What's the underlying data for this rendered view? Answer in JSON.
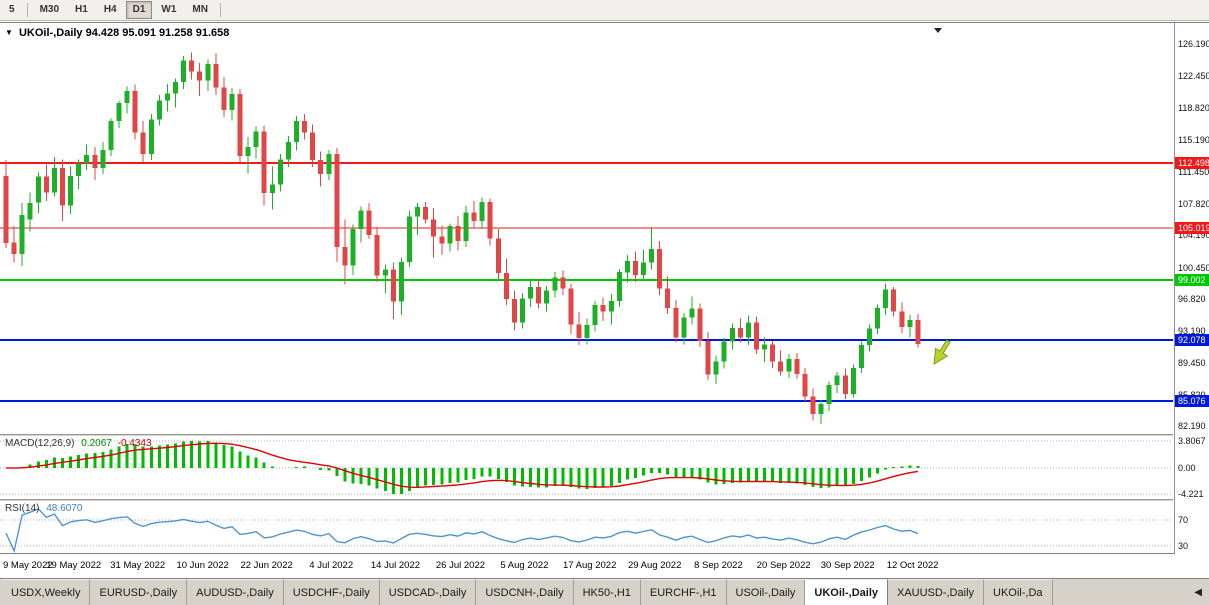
{
  "icons": {
    "chart_menu": "▼",
    "tab_scroll_left": "◀"
  },
  "toolbar": {
    "timeframes": [
      {
        "label": "5",
        "active": false
      },
      {
        "label": "M30",
        "active": false,
        "sep_before": true
      },
      {
        "label": "H1",
        "active": false
      },
      {
        "label": "H4",
        "active": false
      },
      {
        "label": "D1",
        "active": true
      },
      {
        "label": "W1",
        "active": false
      },
      {
        "label": "MN",
        "active": false,
        "sep_after": true
      }
    ]
  },
  "chart_data": {
    "type": "candlestick",
    "title": "UKOil-,Daily  94.428 95.091 91.258 91.658",
    "symbol": "UKOil-",
    "timeframe": "Daily",
    "ohlc_current": {
      "open": 94.428,
      "high": 95.091,
      "low": 91.258,
      "close": 91.658
    },
    "ylim": [
      81.27,
      128.49
    ],
    "y_ticks": [
      126.19,
      122.45,
      118.82,
      115.19,
      111.45,
      107.82,
      104.19,
      100.45,
      96.82,
      93.19,
      89.45,
      85.82,
      82.19
    ],
    "colors": {
      "bull": "#1cb026",
      "bear": "#e04646",
      "macd_hist": "#00bb00",
      "macd_signal": "#e00000",
      "rsi_line": "#4f94cd",
      "level_line_red": "#f01818",
      "level_line_green": "#00c800",
      "level_line_blue": "#0018d8"
    },
    "hlines": [
      {
        "price": 112.498,
        "color": "#f01818",
        "width": 2
      },
      {
        "price": 105.019,
        "color": "#f01818",
        "width": 1
      },
      {
        "price": 99.002,
        "color": "#00c800",
        "width": 2
      },
      {
        "price": 92.078,
        "color": "#0018d8",
        "width": 2
      },
      {
        "price": 85.076,
        "color": "#0018d8",
        "width": 2
      }
    ],
    "annotation": {
      "type": "arrow-down",
      "color": "#b8d431",
      "stroke": "#7e9a10"
    },
    "x_ticks": [
      {
        "i": 0,
        "label": "9 May 2022"
      },
      {
        "i": 8,
        "label": "19 May 2022"
      },
      {
        "i": 16,
        "label": "31 May 2022"
      },
      {
        "i": 24,
        "label": "10 Jun 2022"
      },
      {
        "i": 32,
        "label": "22 Jun 2022"
      },
      {
        "i": 40,
        "label": "4 Jul 2022"
      },
      {
        "i": 48,
        "label": "14 Jul 2022"
      },
      {
        "i": 56,
        "label": "26 Jul 2022"
      },
      {
        "i": 64,
        "label": "5 Aug 2022"
      },
      {
        "i": 72,
        "label": "17 Aug 2022"
      },
      {
        "i": 80,
        "label": "29 Aug 2022"
      },
      {
        "i": 88,
        "label": "8 Sep 2022"
      },
      {
        "i": 96,
        "label": "20 Sep 2022"
      },
      {
        "i": 104,
        "label": "30 Sep 2022"
      },
      {
        "i": 112,
        "label": "12 Oct 2022"
      }
    ],
    "candles": [
      [
        111.0,
        112.8,
        102.7,
        103.3
      ],
      [
        103.3,
        105.2,
        101.0,
        102.0
      ],
      [
        102.0,
        107.9,
        100.6,
        106.5
      ],
      [
        106.0,
        109.1,
        104.6,
        107.9
      ],
      [
        107.9,
        111.4,
        106.7,
        110.9
      ],
      [
        110.9,
        112.3,
        108.1,
        109.1
      ],
      [
        109.1,
        113.2,
        108.6,
        111.9
      ],
      [
        111.9,
        112.9,
        105.8,
        107.6
      ],
      [
        107.6,
        112.1,
        106.6,
        111.0
      ],
      [
        111.0,
        112.9,
        109.5,
        112.4
      ],
      [
        112.4,
        114.6,
        111.6,
        113.4
      ],
      [
        113.4,
        114.3,
        110.5,
        111.9
      ],
      [
        111.9,
        114.9,
        111.2,
        114.0
      ],
      [
        114.0,
        117.6,
        113.3,
        117.3
      ],
      [
        117.3,
        119.6,
        116.5,
        119.4
      ],
      [
        119.4,
        121.3,
        118.2,
        120.8
      ],
      [
        120.8,
        121.5,
        115.2,
        116.0
      ],
      [
        116.0,
        117.3,
        112.6,
        113.5
      ],
      [
        113.5,
        118.1,
        112.8,
        117.5
      ],
      [
        117.5,
        120.3,
        116.8,
        119.7
      ],
      [
        119.7,
        121.6,
        118.4,
        120.5
      ],
      [
        120.5,
        122.2,
        118.9,
        121.8
      ],
      [
        121.8,
        124.8,
        121.0,
        124.3
      ],
      [
        124.3,
        125.2,
        122.1,
        123.0
      ],
      [
        123.0,
        124.0,
        120.2,
        122.0
      ],
      [
        122.0,
        124.4,
        120.8,
        123.9
      ],
      [
        123.9,
        125.1,
        120.3,
        121.2
      ],
      [
        121.2,
        122.4,
        117.8,
        118.6
      ],
      [
        118.6,
        121.1,
        117.4,
        120.4
      ],
      [
        120.4,
        121.0,
        112.6,
        113.3
      ],
      [
        113.3,
        115.5,
        111.3,
        114.3
      ],
      [
        114.3,
        116.7,
        113.0,
        116.1
      ],
      [
        116.1,
        116.8,
        107.6,
        109.0
      ],
      [
        109.0,
        112.1,
        107.1,
        110.0
      ],
      [
        110.0,
        113.5,
        109.2,
        112.9
      ],
      [
        112.9,
        115.6,
        112.0,
        114.9
      ],
      [
        114.9,
        117.9,
        113.9,
        117.3
      ],
      [
        117.3,
        118.1,
        115.2,
        116.0
      ],
      [
        116.0,
        116.9,
        112.0,
        112.8
      ],
      [
        112.8,
        113.8,
        109.8,
        111.2
      ],
      [
        111.2,
        114.0,
        110.5,
        113.5
      ],
      [
        113.5,
        114.2,
        101.1,
        102.8
      ],
      [
        102.8,
        106.0,
        98.5,
        100.7
      ],
      [
        100.7,
        105.4,
        99.6,
        104.9
      ],
      [
        104.9,
        107.5,
        103.3,
        107.0
      ],
      [
        107.0,
        107.9,
        103.7,
        104.2
      ],
      [
        104.2,
        105.1,
        98.8,
        99.5
      ],
      [
        99.5,
        100.8,
        97.5,
        100.2
      ],
      [
        100.2,
        101.0,
        94.5,
        96.5
      ],
      [
        96.5,
        101.6,
        95.0,
        101.1
      ],
      [
        101.1,
        107.0,
        100.5,
        106.3
      ],
      [
        106.3,
        107.9,
        104.2,
        107.4
      ],
      [
        107.4,
        108.0,
        105.5,
        106.0
      ],
      [
        106.0,
        107.3,
        101.6,
        104.0
      ],
      [
        104.0,
        105.3,
        101.9,
        103.2
      ],
      [
        103.2,
        105.5,
        102.3,
        105.2
      ],
      [
        105.2,
        106.4,
        102.4,
        103.5
      ],
      [
        103.5,
        107.6,
        102.8,
        106.8
      ],
      [
        106.8,
        108.1,
        105.0,
        105.8
      ],
      [
        105.8,
        108.5,
        104.9,
        108.0
      ],
      [
        108.0,
        108.4,
        103.0,
        103.8
      ],
      [
        103.8,
        104.9,
        99.1,
        99.8
      ],
      [
        99.8,
        101.5,
        96.1,
        96.8
      ],
      [
        96.8,
        97.8,
        93.2,
        94.1
      ],
      [
        94.1,
        97.5,
        93.4,
        96.9
      ],
      [
        96.9,
        98.9,
        95.9,
        98.2
      ],
      [
        98.2,
        99.1,
        95.7,
        96.3
      ],
      [
        96.3,
        98.3,
        95.4,
        97.8
      ],
      [
        97.8,
        99.9,
        97.0,
        99.3
      ],
      [
        99.3,
        100.1,
        97.3,
        98.0
      ],
      [
        98.0,
        98.6,
        92.8,
        93.9
      ],
      [
        93.9,
        95.3,
        91.5,
        92.3
      ],
      [
        92.3,
        94.6,
        91.6,
        93.8
      ],
      [
        93.8,
        96.6,
        93.1,
        96.1
      ],
      [
        96.1,
        97.0,
        94.3,
        95.4
      ],
      [
        95.4,
        97.4,
        93.9,
        96.6
      ],
      [
        96.6,
        100.3,
        95.9,
        99.9
      ],
      [
        99.9,
        101.9,
        98.7,
        101.2
      ],
      [
        101.2,
        102.3,
        98.8,
        99.6
      ],
      [
        99.6,
        102.5,
        98.9,
        101.0
      ],
      [
        101.0,
        105.1,
        100.2,
        102.6
      ],
      [
        102.6,
        103.5,
        97.2,
        98.0
      ],
      [
        98.0,
        99.4,
        95.1,
        95.8
      ],
      [
        95.8,
        96.7,
        91.8,
        92.4
      ],
      [
        92.4,
        95.2,
        91.6,
        94.7
      ],
      [
        94.7,
        97.1,
        93.9,
        95.7
      ],
      [
        95.7,
        96.3,
        91.3,
        92.0
      ],
      [
        92.0,
        93.0,
        87.5,
        88.1
      ],
      [
        88.1,
        90.3,
        87.0,
        89.6
      ],
      [
        89.6,
        92.3,
        88.8,
        91.9
      ],
      [
        91.9,
        94.0,
        91.0,
        93.5
      ],
      [
        93.5,
        94.6,
        91.8,
        92.4
      ],
      [
        92.4,
        94.9,
        91.5,
        94.1
      ],
      [
        94.1,
        94.8,
        90.5,
        91.0
      ],
      [
        91.0,
        92.4,
        89.5,
        91.6
      ],
      [
        91.6,
        92.0,
        88.9,
        89.6
      ],
      [
        89.6,
        90.9,
        88.0,
        88.5
      ],
      [
        88.5,
        90.5,
        87.7,
        89.9
      ],
      [
        89.9,
        90.6,
        87.6,
        88.2
      ],
      [
        88.2,
        88.9,
        85.0,
        85.6
      ],
      [
        85.6,
        86.5,
        82.8,
        83.6
      ],
      [
        83.6,
        85.2,
        82.4,
        84.7
      ],
      [
        84.7,
        87.3,
        83.9,
        86.9
      ],
      [
        86.9,
        88.4,
        86.0,
        88.0
      ],
      [
        88.0,
        88.8,
        85.3,
        85.9
      ],
      [
        85.9,
        89.3,
        85.5,
        88.9
      ],
      [
        88.9,
        91.9,
        88.3,
        91.5
      ],
      [
        91.5,
        93.9,
        90.8,
        93.4
      ],
      [
        93.4,
        96.2,
        92.8,
        95.8
      ],
      [
        95.8,
        98.6,
        95.0,
        97.9
      ],
      [
        97.9,
        98.2,
        94.8,
        95.4
      ],
      [
        95.4,
        96.4,
        92.9,
        93.6
      ],
      [
        93.6,
        95.0,
        92.4,
        94.4
      ],
      [
        94.428,
        95.091,
        91.258,
        91.658
      ]
    ],
    "indicators": [
      {
        "type": "macd",
        "name": "MACD(12,26,9)",
        "params": [
          12,
          26,
          9
        ],
        "main_value": "0.2067",
        "signal_value": "-0.4343",
        "y_ticks": [
          "3.8067",
          "0.00",
          "-4.221"
        ]
      },
      {
        "type": "rsi",
        "name": "RSI(14)",
        "period": 14,
        "value": "48.6070",
        "levels": [
          70,
          30
        ]
      }
    ]
  },
  "tabs": {
    "items": [
      {
        "label": "USDX,Weekly",
        "active": false
      },
      {
        "label": "EURUSD-,Daily",
        "active": false
      },
      {
        "label": "AUDUSD-,Daily",
        "active": false
      },
      {
        "label": "USDCHF-,Daily",
        "active": false
      },
      {
        "label": "USDCAD-,Daily",
        "active": false
      },
      {
        "label": "USDCNH-,Daily",
        "active": false
      },
      {
        "label": "HK50-,H1",
        "active": false
      },
      {
        "label": "EURCHF-,H1",
        "active": false
      },
      {
        "label": "USOil-,Daily",
        "active": false
      },
      {
        "label": "UKOil-,Daily",
        "active": true
      },
      {
        "label": "XAUUSD-,Daily",
        "active": false
      },
      {
        "label": "UKOil-,Da",
        "active": false
      }
    ]
  }
}
